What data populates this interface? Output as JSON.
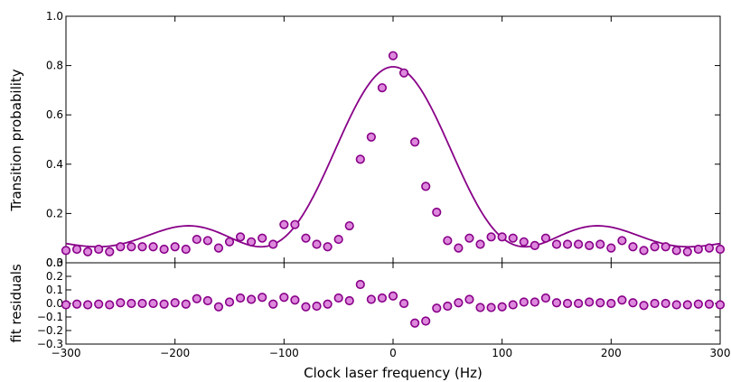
{
  "chart_data": [
    {
      "type": "scatter",
      "panel": "top",
      "xlabel": "",
      "ylabel": "Transition probability",
      "xlim": [
        -300,
        300
      ],
      "ylim": [
        0.0,
        1.0
      ],
      "yticks": [
        "0.0",
        "0.2",
        "0.4",
        "0.6",
        "0.8",
        "1.0"
      ],
      "series": [
        {
          "kind": "points",
          "x": [
            -300,
            -290,
            -280,
            -270,
            -260,
            -250,
            -240,
            -230,
            -220,
            -210,
            -200,
            -190,
            -180,
            -170,
            -160,
            -150,
            -140,
            -130,
            -120,
            -110,
            -100,
            -90,
            -80,
            -70,
            -60,
            -50,
            -40,
            -30,
            -20,
            -10,
            0,
            10,
            20,
            30,
            40,
            50,
            60,
            70,
            80,
            90,
            100,
            110,
            120,
            130,
            140,
            150,
            160,
            170,
            180,
            190,
            200,
            210,
            220,
            230,
            240,
            250,
            260,
            270,
            280,
            290,
            300
          ],
          "y": [
            0.05,
            0.055,
            0.045,
            0.055,
            0.045,
            0.065,
            0.065,
            0.065,
            0.065,
            0.055,
            0.065,
            0.055,
            0.095,
            0.09,
            0.06,
            0.085,
            0.105,
            0.085,
            0.1,
            0.075,
            0.155,
            0.155,
            0.1,
            0.075,
            0.065,
            0.095,
            0.15,
            0.42,
            0.51,
            0.71,
            0.84,
            0.77,
            0.49,
            0.31,
            0.205,
            0.09,
            0.06,
            0.1,
            0.075,
            0.105,
            0.105,
            0.1,
            0.085,
            0.07,
            0.1,
            0.075,
            0.075,
            0.075,
            0.07,
            0.075,
            0.06,
            0.09,
            0.065,
            0.05,
            0.065,
            0.065,
            0.05,
            0.045,
            0.055,
            0.06,
            0.055
          ]
        },
        {
          "kind": "fit-curve",
          "model": {
            "baseline": 0.065,
            "amplitude": 0.73,
            "rabi_hz": 70
          }
        }
      ],
      "colors": {
        "marker_fill": "#dd88dd",
        "marker_edge": "#880088",
        "curve": "#880088"
      }
    },
    {
      "type": "scatter",
      "panel": "bottom",
      "xlabel": "Clock laser frequency (Hz)",
      "ylabel": "fit residuals",
      "xlim": [
        -300,
        300
      ],
      "ylim": [
        -0.3,
        0.3
      ],
      "xticks": [
        "−300",
        "−200",
        "−100",
        "0",
        "100",
        "200",
        "300"
      ],
      "yticks": [
        "−0.3",
        "−0.2",
        "−0.1",
        "0.0",
        "0.1",
        "0.2",
        "0.3"
      ],
      "series": [
        {
          "kind": "points",
          "x": [
            -300,
            -290,
            -280,
            -270,
            -260,
            -250,
            -240,
            -230,
            -220,
            -210,
            -200,
            -190,
            -180,
            -170,
            -160,
            -150,
            -140,
            -130,
            -120,
            -110,
            -100,
            -90,
            -80,
            -70,
            -60,
            -50,
            -40,
            -30,
            -20,
            -10,
            0,
            10,
            20,
            30,
            40,
            50,
            60,
            70,
            80,
            90,
            100,
            110,
            120,
            130,
            140,
            150,
            160,
            170,
            180,
            190,
            200,
            210,
            220,
            230,
            240,
            250,
            260,
            270,
            280,
            290,
            300
          ],
          "y": [
            -0.01,
            -0.005,
            -0.01,
            -0.005,
            -0.01,
            0.005,
            0.0,
            0.0,
            0.0,
            -0.005,
            0.005,
            -0.005,
            0.035,
            0.02,
            -0.025,
            0.01,
            0.04,
            0.03,
            0.045,
            -0.005,
            0.045,
            0.025,
            -0.025,
            -0.02,
            -0.005,
            0.04,
            0.02,
            0.14,
            0.03,
            0.04,
            0.055,
            0.0,
            -0.145,
            -0.13,
            -0.035,
            -0.02,
            0.005,
            0.03,
            -0.03,
            -0.03,
            -0.025,
            -0.01,
            0.01,
            0.01,
            0.04,
            0.005,
            0.0,
            0.0,
            0.01,
            0.005,
            0.0,
            0.025,
            0.005,
            -0.015,
            0.0,
            0.0,
            -0.01,
            -0.01,
            -0.005,
            -0.005,
            -0.01
          ]
        }
      ],
      "colors": {
        "marker_fill": "#dd88dd",
        "marker_edge": "#880088"
      }
    }
  ]
}
